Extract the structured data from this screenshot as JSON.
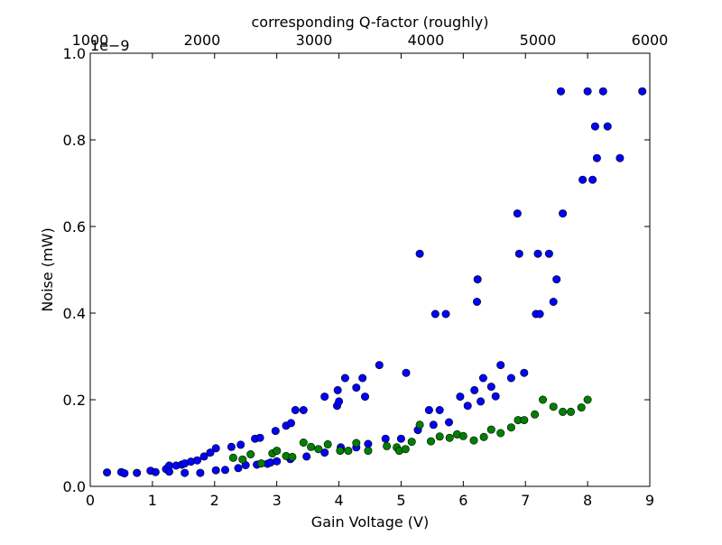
{
  "chart_data": {
    "type": "scatter",
    "title": "",
    "xlabel": "Gain Voltage (V)",
    "ylabel": "Noise (mW)",
    "top_xlabel": "corresponding Q-factor (roughly)",
    "offset_text": "1e−9",
    "xlim": [
      0,
      9
    ],
    "ylim": [
      0,
      1.0
    ],
    "xticks": [
      "0",
      "1",
      "2",
      "3",
      "4",
      "5",
      "6",
      "7",
      "8",
      "9"
    ],
    "yticks": [
      "0.0",
      "0.2",
      "0.4",
      "0.6",
      "0.8",
      "1.0"
    ],
    "top_xticks": [
      {
        "label": "1000",
        "x": 0.0
      },
      {
        "label": "2000",
        "x": 1.8
      },
      {
        "label": "3000",
        "x": 3.6
      },
      {
        "label": "4000",
        "x": 5.4
      },
      {
        "label": "5000",
        "x": 7.2
      },
      {
        "label": "6000",
        "x": 9.0
      }
    ],
    "grid": false,
    "series": [
      {
        "color": "#0000ff",
        "points": [
          [
            0.27,
            0.032
          ],
          [
            0.5,
            0.033
          ],
          [
            0.55,
            0.03
          ],
          [
            0.75,
            0.031
          ],
          [
            0.97,
            0.036
          ],
          [
            1.05,
            0.033
          ],
          [
            1.22,
            0.04
          ],
          [
            1.27,
            0.048
          ],
          [
            1.27,
            0.034
          ],
          [
            1.38,
            0.048
          ],
          [
            1.47,
            0.05
          ],
          [
            1.52,
            0.053
          ],
          [
            1.52,
            0.031
          ],
          [
            1.62,
            0.057
          ],
          [
            1.72,
            0.06
          ],
          [
            1.77,
            0.031
          ],
          [
            1.83,
            0.069
          ],
          [
            1.93,
            0.078
          ],
          [
            2.02,
            0.037
          ],
          [
            2.02,
            0.088
          ],
          [
            2.17,
            0.038
          ],
          [
            2.27,
            0.091
          ],
          [
            2.38,
            0.042
          ],
          [
            2.42,
            0.096
          ],
          [
            2.5,
            0.049
          ],
          [
            2.65,
            0.11
          ],
          [
            2.68,
            0.05
          ],
          [
            2.73,
            0.112
          ],
          [
            2.85,
            0.052
          ],
          [
            2.9,
            0.055
          ],
          [
            2.98,
            0.128
          ],
          [
            3.0,
            0.058
          ],
          [
            3.15,
            0.14
          ],
          [
            3.22,
            0.063
          ],
          [
            3.23,
            0.146
          ],
          [
            3.3,
            0.176
          ],
          [
            3.43,
            0.176
          ],
          [
            3.48,
            0.069
          ],
          [
            3.77,
            0.207
          ],
          [
            3.77,
            0.078
          ],
          [
            3.97,
            0.186
          ],
          [
            3.98,
            0.222
          ],
          [
            4.0,
            0.196
          ],
          [
            4.03,
            0.09
          ],
          [
            4.1,
            0.25
          ],
          [
            4.28,
            0.09
          ],
          [
            4.28,
            0.228
          ],
          [
            4.38,
            0.25
          ],
          [
            4.42,
            0.207
          ],
          [
            4.47,
            0.098
          ],
          [
            4.65,
            0.28
          ],
          [
            4.75,
            0.11
          ],
          [
            5.0,
            0.11
          ],
          [
            5.08,
            0.262
          ],
          [
            5.27,
            0.13
          ],
          [
            5.3,
            0.537
          ],
          [
            5.45,
            0.176
          ],
          [
            5.52,
            0.142
          ],
          [
            5.55,
            0.398
          ],
          [
            5.62,
            0.176
          ],
          [
            5.72,
            0.398
          ],
          [
            5.77,
            0.148
          ],
          [
            5.95,
            0.207
          ],
          [
            6.07,
            0.186
          ],
          [
            6.18,
            0.222
          ],
          [
            6.22,
            0.426
          ],
          [
            6.23,
            0.478
          ],
          [
            6.28,
            0.196
          ],
          [
            6.32,
            0.25
          ],
          [
            6.45,
            0.23
          ],
          [
            6.52,
            0.208
          ],
          [
            6.6,
            0.28
          ],
          [
            6.77,
            0.25
          ],
          [
            6.87,
            0.63
          ],
          [
            6.9,
            0.537
          ],
          [
            6.98,
            0.262
          ],
          [
            7.17,
            0.398
          ],
          [
            7.2,
            0.537
          ],
          [
            7.23,
            0.398
          ],
          [
            7.38,
            0.537
          ],
          [
            7.45,
            0.426
          ],
          [
            7.5,
            0.478
          ],
          [
            7.57,
            0.912
          ],
          [
            7.6,
            0.63
          ],
          [
            7.92,
            0.708
          ],
          [
            8.0,
            0.912
          ],
          [
            8.08,
            0.708
          ],
          [
            8.12,
            0.831
          ],
          [
            8.15,
            0.758
          ],
          [
            8.25,
            0.912
          ],
          [
            8.32,
            0.831
          ],
          [
            8.52,
            0.758
          ],
          [
            8.88,
            0.912
          ]
        ]
      },
      {
        "color": "#008000",
        "points": [
          [
            2.3,
            0.066
          ],
          [
            2.45,
            0.062
          ],
          [
            2.58,
            0.074
          ],
          [
            2.75,
            0.053
          ],
          [
            2.93,
            0.076
          ],
          [
            3.0,
            0.082
          ],
          [
            3.15,
            0.07
          ],
          [
            3.25,
            0.068
          ],
          [
            3.43,
            0.101
          ],
          [
            3.55,
            0.091
          ],
          [
            3.67,
            0.086
          ],
          [
            3.82,
            0.097
          ],
          [
            4.02,
            0.082
          ],
          [
            4.15,
            0.082
          ],
          [
            4.28,
            0.1
          ],
          [
            4.47,
            0.082
          ],
          [
            4.77,
            0.093
          ],
          [
            4.93,
            0.09
          ],
          [
            4.97,
            0.082
          ],
          [
            5.07,
            0.086
          ],
          [
            5.17,
            0.103
          ],
          [
            5.3,
            0.142
          ],
          [
            5.48,
            0.104
          ],
          [
            5.62,
            0.115
          ],
          [
            5.78,
            0.112
          ],
          [
            5.9,
            0.12
          ],
          [
            6.0,
            0.116
          ],
          [
            6.17,
            0.106
          ],
          [
            6.33,
            0.114
          ],
          [
            6.45,
            0.131
          ],
          [
            6.6,
            0.123
          ],
          [
            6.77,
            0.136
          ],
          [
            6.88,
            0.153
          ],
          [
            6.98,
            0.153
          ],
          [
            7.15,
            0.166
          ],
          [
            7.28,
            0.2
          ],
          [
            7.45,
            0.184
          ],
          [
            7.6,
            0.172
          ],
          [
            7.73,
            0.172
          ],
          [
            7.9,
            0.182
          ],
          [
            8.0,
            0.2
          ]
        ]
      }
    ]
  }
}
